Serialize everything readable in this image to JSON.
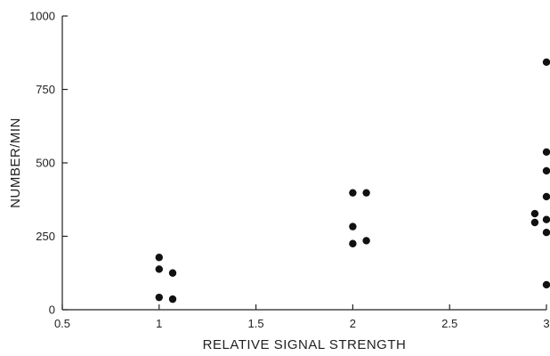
{
  "chart_data": {
    "type": "scatter",
    "title": "",
    "xlabel": "RELATIVE SIGNAL STRENGTH",
    "ylabel": "NUMBER/MIN",
    "xlim": [
      0.5,
      3
    ],
    "ylim": [
      0,
      1000
    ],
    "xticks": [
      0.5,
      1,
      1.5,
      2,
      2.5,
      3
    ],
    "xtick_labels": [
      "0.5",
      "1",
      "1.5",
      "2",
      "2.5",
      "3"
    ],
    "yticks": [
      0,
      250,
      500,
      750,
      1000
    ],
    "ytick_labels": [
      "0",
      "250",
      "500",
      "750",
      "1000"
    ],
    "grid": false,
    "legend": "none",
    "series": [
      {
        "points": [
          {
            "x": 1.0,
            "y": 178
          },
          {
            "x": 1.0,
            "y": 138
          },
          {
            "x": 1.07,
            "y": 125
          },
          {
            "x": 1.0,
            "y": 42
          },
          {
            "x": 1.07,
            "y": 36
          },
          {
            "x": 2.0,
            "y": 398
          },
          {
            "x": 2.07,
            "y": 398
          },
          {
            "x": 2.0,
            "y": 283
          },
          {
            "x": 2.07,
            "y": 235
          },
          {
            "x": 2.0,
            "y": 225
          },
          {
            "x": 3.0,
            "y": 843
          },
          {
            "x": 3.0,
            "y": 537
          },
          {
            "x": 3.0,
            "y": 473
          },
          {
            "x": 3.0,
            "y": 385
          },
          {
            "x": 2.94,
            "y": 327
          },
          {
            "x": 2.94,
            "y": 297
          },
          {
            "x": 3.0,
            "y": 307
          },
          {
            "x": 3.0,
            "y": 263
          },
          {
            "x": 3.0,
            "y": 85
          }
        ]
      }
    ]
  }
}
